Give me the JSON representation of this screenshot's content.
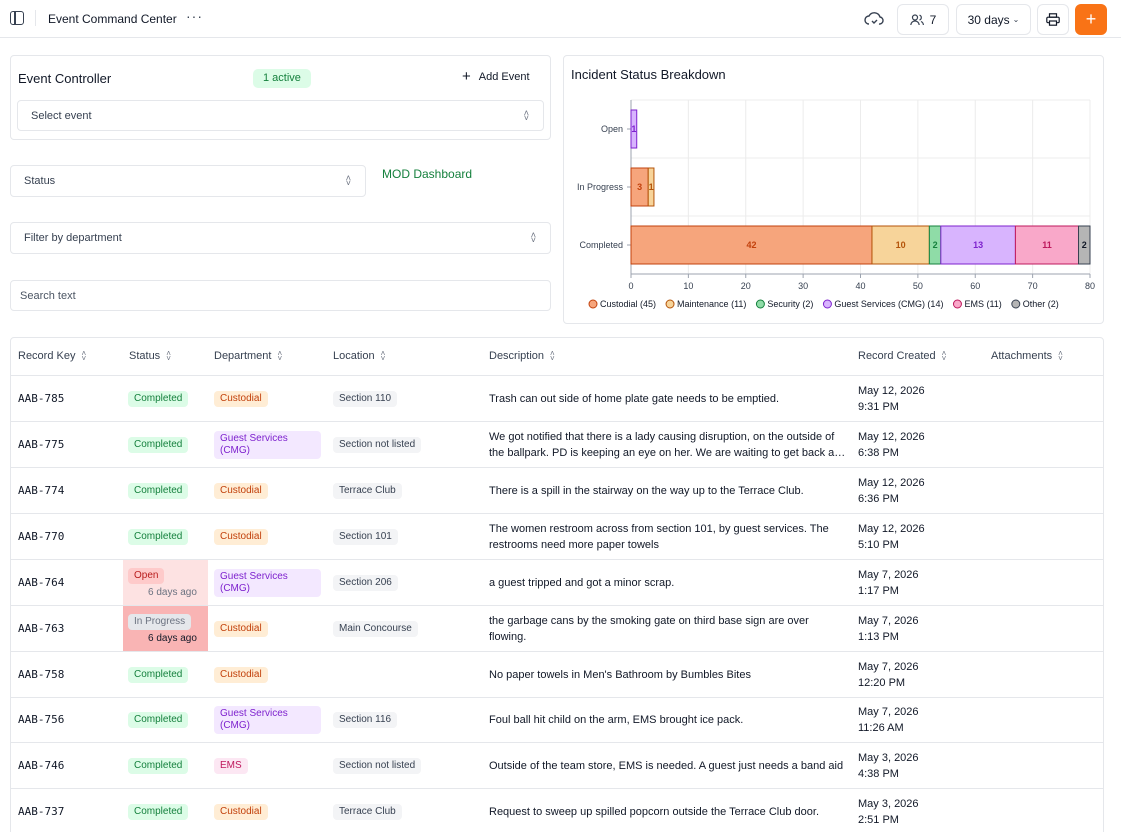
{
  "topbar": {
    "title": "Event Command Center",
    "more": "···",
    "users_count": "7",
    "range": "30 days",
    "add": "+"
  },
  "event_controller": {
    "title": "Event Controller",
    "badge": "1 active",
    "add_label": "Add Event",
    "select_placeholder": "Select event"
  },
  "filters": {
    "status": "Status",
    "mod_link": "MOD Dashboard",
    "department": "Filter by department",
    "search_placeholder": "Search text"
  },
  "chart_data": {
    "type": "bar",
    "orientation": "horizontal",
    "stacked": true,
    "title": "Incident Status Breakdown",
    "categories": [
      "Open",
      "In Progress",
      "Completed"
    ],
    "series": [
      {
        "name": "Custodial (45)",
        "values": [
          0,
          3,
          42
        ],
        "color": "#f6a57c",
        "stroke": "#c2410c",
        "label_color": "#c2410c"
      },
      {
        "name": "Maintenance (11)",
        "values": [
          0,
          1,
          10
        ],
        "color": "#f7d49a",
        "stroke": "#b45309",
        "label_color": "#b45309"
      },
      {
        "name": "Security (2)",
        "values": [
          0,
          0,
          2
        ],
        "color": "#8fdca7",
        "stroke": "#15803d",
        "label_color": "#15803d"
      },
      {
        "name": "Guest Services (CMG) (14)",
        "values": [
          1,
          0,
          13
        ],
        "color": "#d8b4fe",
        "stroke": "#7e22ce",
        "label_color": "#7e22ce"
      },
      {
        "name": "EMS (11)",
        "values": [
          0,
          0,
          11
        ],
        "color": "#f9a8c9",
        "stroke": "#be185d",
        "label_color": "#be185d"
      },
      {
        "name": "Other (2)",
        "values": [
          0,
          0,
          2
        ],
        "color": "#b5b5b5",
        "stroke": "#374151",
        "label_color": "#111827"
      }
    ],
    "xlim": [
      0,
      80
    ],
    "xticks": [
      0,
      10,
      20,
      30,
      40,
      50,
      60,
      70,
      80
    ],
    "grid": true,
    "legend": "bottom"
  },
  "table": {
    "columns": [
      "Record Key",
      "Status",
      "Department",
      "Location",
      "Description",
      "Record Created",
      "Attachments"
    ],
    "rows": [
      {
        "key": "AAB-785",
        "status": "Completed",
        "status_type": "completed",
        "ago": "",
        "dept": "Custodial",
        "dept_type": "custodial",
        "location": "Section 110",
        "desc": "Trash can out side of home plate gate needs to be emptied.",
        "date": "May 12, 2026",
        "time": "9:31 PM"
      },
      {
        "key": "AAB-775",
        "status": "Completed",
        "status_type": "completed",
        "ago": "",
        "dept": "Guest Services (CMG)",
        "dept_type": "guest",
        "location": "Section not listed",
        "desc": "We got notified that there is a lady causing disruption, on the outside of the ballpark. PD is keeping an eye on her. We are waiting to get back an update.",
        "date": "May 12, 2026",
        "time": "6:38 PM"
      },
      {
        "key": "AAB-774",
        "status": "Completed",
        "status_type": "completed",
        "ago": "",
        "dept": "Custodial",
        "dept_type": "custodial",
        "location": "Terrace Club",
        "desc": "There is a spill in the stairway on the way up to the Terrace Club.",
        "date": "May 12, 2026",
        "time": "6:36 PM"
      },
      {
        "key": "AAB-770",
        "status": "Completed",
        "status_type": "completed",
        "ago": "",
        "dept": "Custodial",
        "dept_type": "custodial",
        "location": "Section 101",
        "desc": "The women restroom across from section 101, by guest services. The restrooms need more paper towels",
        "date": "May 12, 2026",
        "time": "5:10 PM"
      },
      {
        "key": "AAB-764",
        "status": "Open",
        "status_type": "open",
        "ago": "6 days ago",
        "dept": "Guest Services (CMG)",
        "dept_type": "guest",
        "location": "Section 206",
        "desc": "a guest tripped and got a minor scrap.",
        "date": "May 7, 2026",
        "time": "1:17 PM"
      },
      {
        "key": "AAB-763",
        "status": "In Progress",
        "status_type": "progress",
        "ago": "6 days ago",
        "dept": "Custodial",
        "dept_type": "custodial",
        "location": "Main Concourse",
        "desc": "the garbage cans by the smoking gate on third base sign are over flowing.",
        "date": "May 7, 2026",
        "time": "1:13 PM"
      },
      {
        "key": "AAB-758",
        "status": "Completed",
        "status_type": "completed",
        "ago": "",
        "dept": "Custodial",
        "dept_type": "custodial",
        "location": "",
        "desc": "No paper towels in Men's Bathroom by Bumbles Bites",
        "date": "May 7, 2026",
        "time": "12:20 PM"
      },
      {
        "key": "AAB-756",
        "status": "Completed",
        "status_type": "completed",
        "ago": "",
        "dept": "Guest Services (CMG)",
        "dept_type": "guest",
        "location": "Section 116",
        "desc": "Foul ball hit child on the arm, EMS brought ice pack.",
        "date": "May 7, 2026",
        "time": "11:26 AM"
      },
      {
        "key": "AAB-746",
        "status": "Completed",
        "status_type": "completed",
        "ago": "",
        "dept": "EMS",
        "dept_type": "ems",
        "location": "Section not listed",
        "desc": "Outside of the team store, EMS is needed. A guest just needs a band aid",
        "date": "May 3, 2026",
        "time": "4:38 PM"
      },
      {
        "key": "AAB-737",
        "status": "Completed",
        "status_type": "completed",
        "ago": "",
        "dept": "Custodial",
        "dept_type": "custodial",
        "location": "Terrace Club",
        "desc": "Request to sweep up spilled popcorn outside the Terrace Club door.",
        "date": "May 3, 2026",
        "time": "2:51 PM"
      }
    ]
  }
}
